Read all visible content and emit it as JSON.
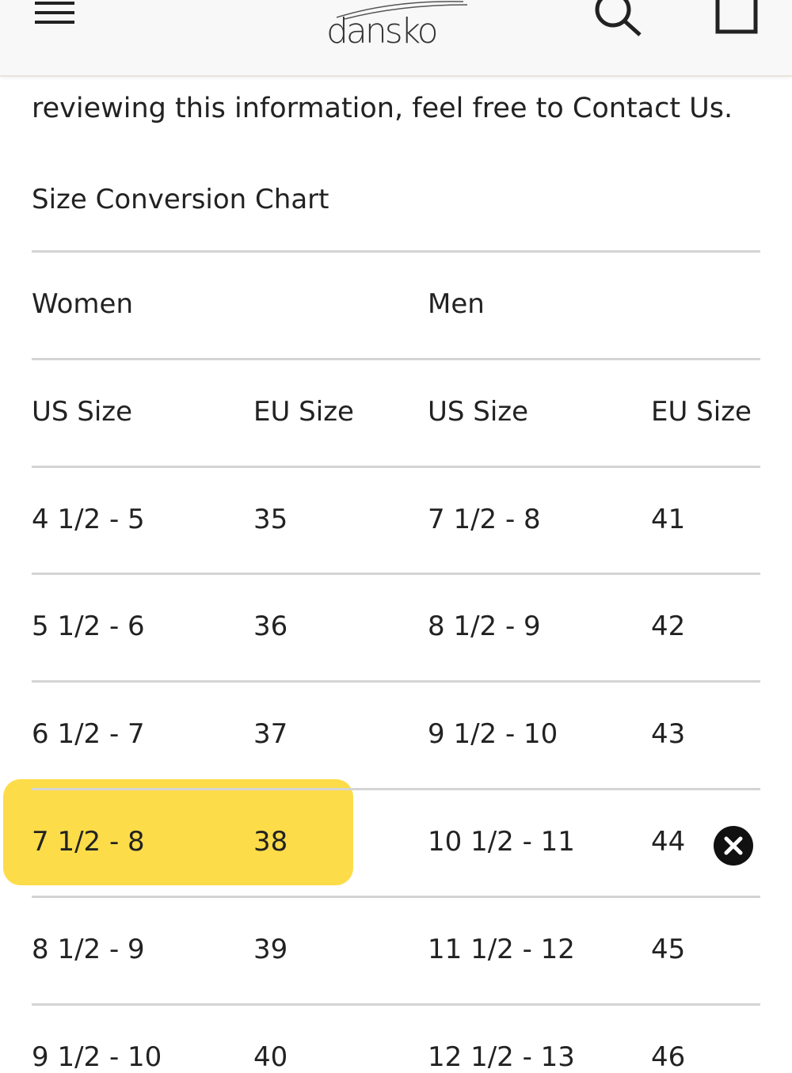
{
  "header": {
    "logo": "dansko"
  },
  "intro": "reviewing this information, feel free to Contact Us.",
  "table": {
    "title": "Size Conversion Chart",
    "groups": [
      "Women",
      "Men"
    ],
    "columns": [
      "US Size",
      "EU Size",
      "US Size",
      "EU Size"
    ],
    "rows": [
      [
        "4 1/2 - 5",
        "35",
        "7 1/2 - 8",
        "41"
      ],
      [
        "5 1/2 - 6",
        "36",
        "8 1/2 - 9",
        "42"
      ],
      [
        "6 1/2 - 7",
        "37",
        "9 1/2 - 10",
        "43"
      ],
      [
        "7 1/2 - 8",
        "38",
        "10 1/2 - 11",
        "44"
      ],
      [
        "8 1/2 - 9",
        "39",
        "11 1/2 - 12",
        "45"
      ],
      [
        "9 1/2 - 10",
        "40",
        "12 1/2 - 13",
        "46"
      ]
    ]
  }
}
